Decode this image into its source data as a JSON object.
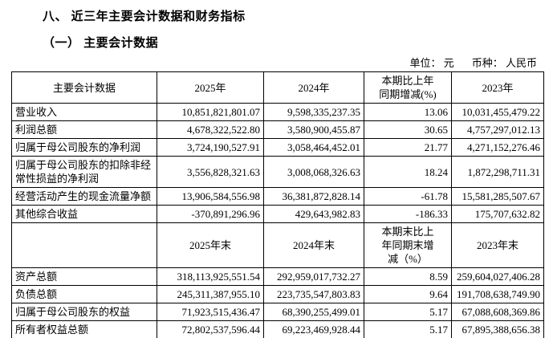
{
  "page": {
    "section_title": "八、 近三年主要会计数据和财务指标",
    "subsection_title": "（一） 主要会计数据",
    "unit_label": "单位： 元",
    "currency_label": "币种： 人民币"
  },
  "table": {
    "column_header": "主要会计数据",
    "period_headers": [
      "2025年",
      "2024年",
      "本期比上年\n同期增减(%)",
      "2023年"
    ],
    "income_rows": [
      {
        "label": "营业收入",
        "y2025": "10,851,821,801.07",
        "y2024": "9,598,335,237.35",
        "change": "13.06",
        "y2023": "10,031,455,479.22"
      },
      {
        "label": "利润总额",
        "y2025": "4,678,322,522.80",
        "y2024": "3,580,900,455.87",
        "change": "30.65",
        "y2023": "4,757,297,012.13"
      },
      {
        "label": "归属于母公司股东的净利润",
        "y2025": "3,724,190,527.91",
        "y2024": "3,058,464,452.01",
        "change": "21.77",
        "y2023": "4,271,152,276.46"
      },
      {
        "label": "归属于母公司股东的扣除非经常性损益的净利润",
        "y2025": "3,556,828,321.63",
        "y2024": "3,008,068,326.63",
        "change": "18.24",
        "y2023": "1,872,298,711.31"
      },
      {
        "label": "经营活动产生的现金流量净额",
        "y2025": "13,906,584,556.98",
        "y2024": "36,381,872,828.14",
        "change": "-61.78",
        "y2023": "15,581,285,507.67"
      },
      {
        "label": "其他综合收益",
        "y2025": "-370,891,296.96",
        "y2024": "429,643,982.83",
        "change": "-186.33",
        "y2023": "175,707,632.82"
      }
    ],
    "period_end_headers": [
      "2025年末",
      "2024年末",
      "本期末比上\n年同期末增\n减（%）",
      "2023年末"
    ],
    "balance_rows": [
      {
        "label": "资产总额",
        "y2025": "318,113,925,551.54",
        "y2024": "292,959,017,732.27",
        "change": "8.59",
        "y2023": "259,604,027,406.28"
      },
      {
        "label": "负债总额",
        "y2025": "245,311,387,955.10",
        "y2024": "223,735,547,803.83",
        "change": "9.64",
        "y2023": "191,708,638,749.90"
      },
      {
        "label": "归属于母公司股东的权益",
        "y2025": "71,923,515,436.47",
        "y2024": "68,390,255,499.01",
        "change": "5.17",
        "y2023": "67,088,608,369.86"
      },
      {
        "label": "所有者权益总额",
        "y2025": "72,802,537,596.44",
        "y2024": "69,223,469,928.44",
        "change": "5.17",
        "y2023": "67,895,388,656.38"
      }
    ]
  }
}
